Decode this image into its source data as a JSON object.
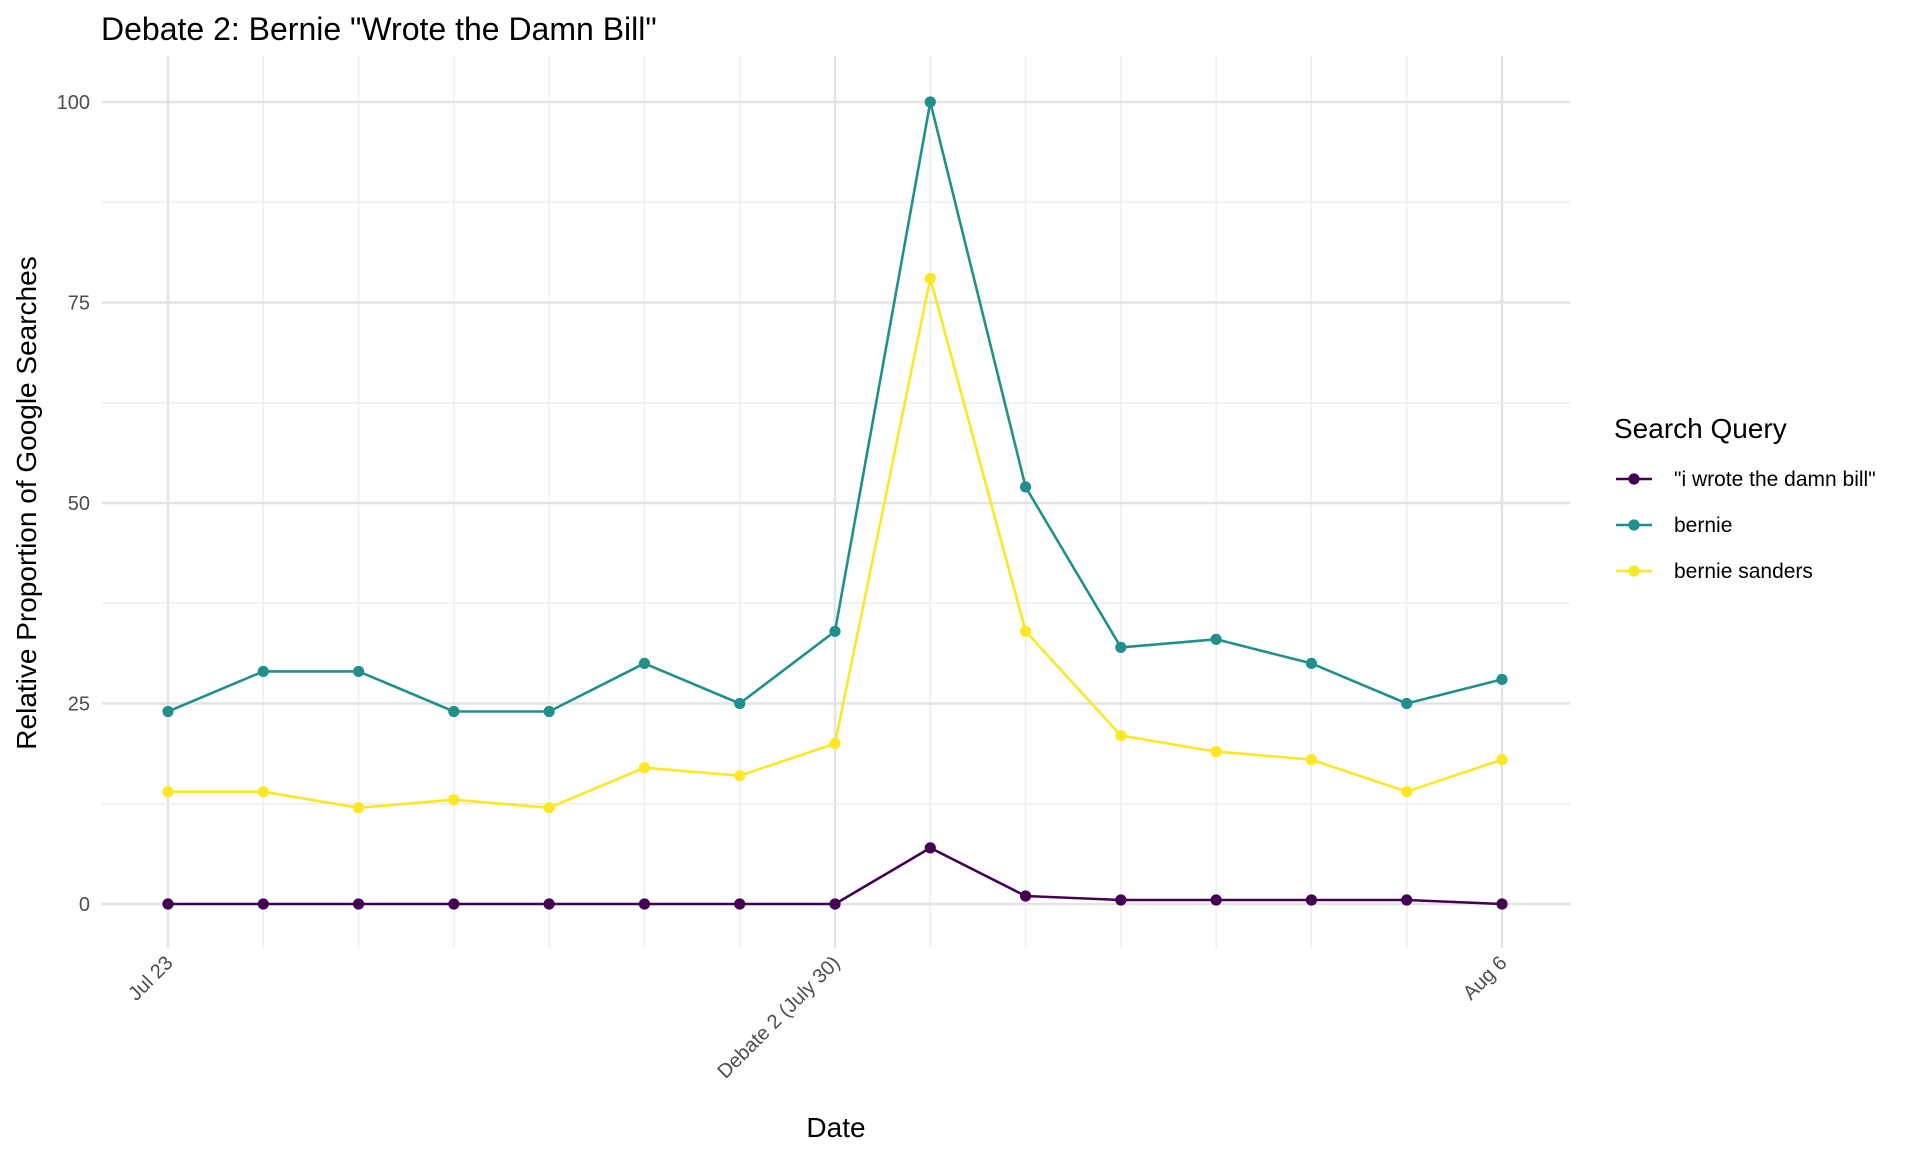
{
  "chart_data": {
    "type": "line",
    "title": "Debate 2: Bernie \"Wrote the Damn Bill\"",
    "xlabel": "Date",
    "ylabel": "Relative Proportion of Google Searches",
    "x": [
      "2019-07-23",
      "2019-07-24",
      "2019-07-25",
      "2019-07-26",
      "2019-07-27",
      "2019-07-28",
      "2019-07-29",
      "2019-07-30",
      "2019-07-31",
      "2019-08-01",
      "2019-08-02",
      "2019-08-03",
      "2019-08-04",
      "2019-08-05",
      "2019-08-06"
    ],
    "x_ticks": [
      {
        "date": "2019-07-23",
        "label": "Jul 23"
      },
      {
        "date": "2019-07-30",
        "label": "Debate 2 (July 30)"
      },
      {
        "date": "2019-08-06",
        "label": "Aug 6"
      }
    ],
    "ylim": [
      0,
      100
    ],
    "y_ticks": [
      0,
      25,
      50,
      75,
      100
    ],
    "grid": true,
    "legend": {
      "title": "Search Query",
      "position": "right"
    },
    "series": [
      {
        "name": "\"i wrote the damn bill\"",
        "color": "#440154",
        "values": [
          0,
          0,
          0,
          0,
          0,
          0,
          0,
          0,
          7,
          1,
          0.5,
          0.5,
          0.5,
          0.5,
          0
        ]
      },
      {
        "name": "bernie",
        "color": "#21908C",
        "values": [
          24,
          29,
          29,
          24,
          24,
          30,
          25,
          34,
          100,
          52,
          32,
          33,
          30,
          25,
          28
        ]
      },
      {
        "name": "bernie sanders",
        "color": "#FDE725",
        "values": [
          14,
          14,
          12,
          13,
          12,
          17,
          16,
          20,
          78,
          34,
          21,
          19,
          18,
          14,
          18
        ]
      }
    ]
  }
}
